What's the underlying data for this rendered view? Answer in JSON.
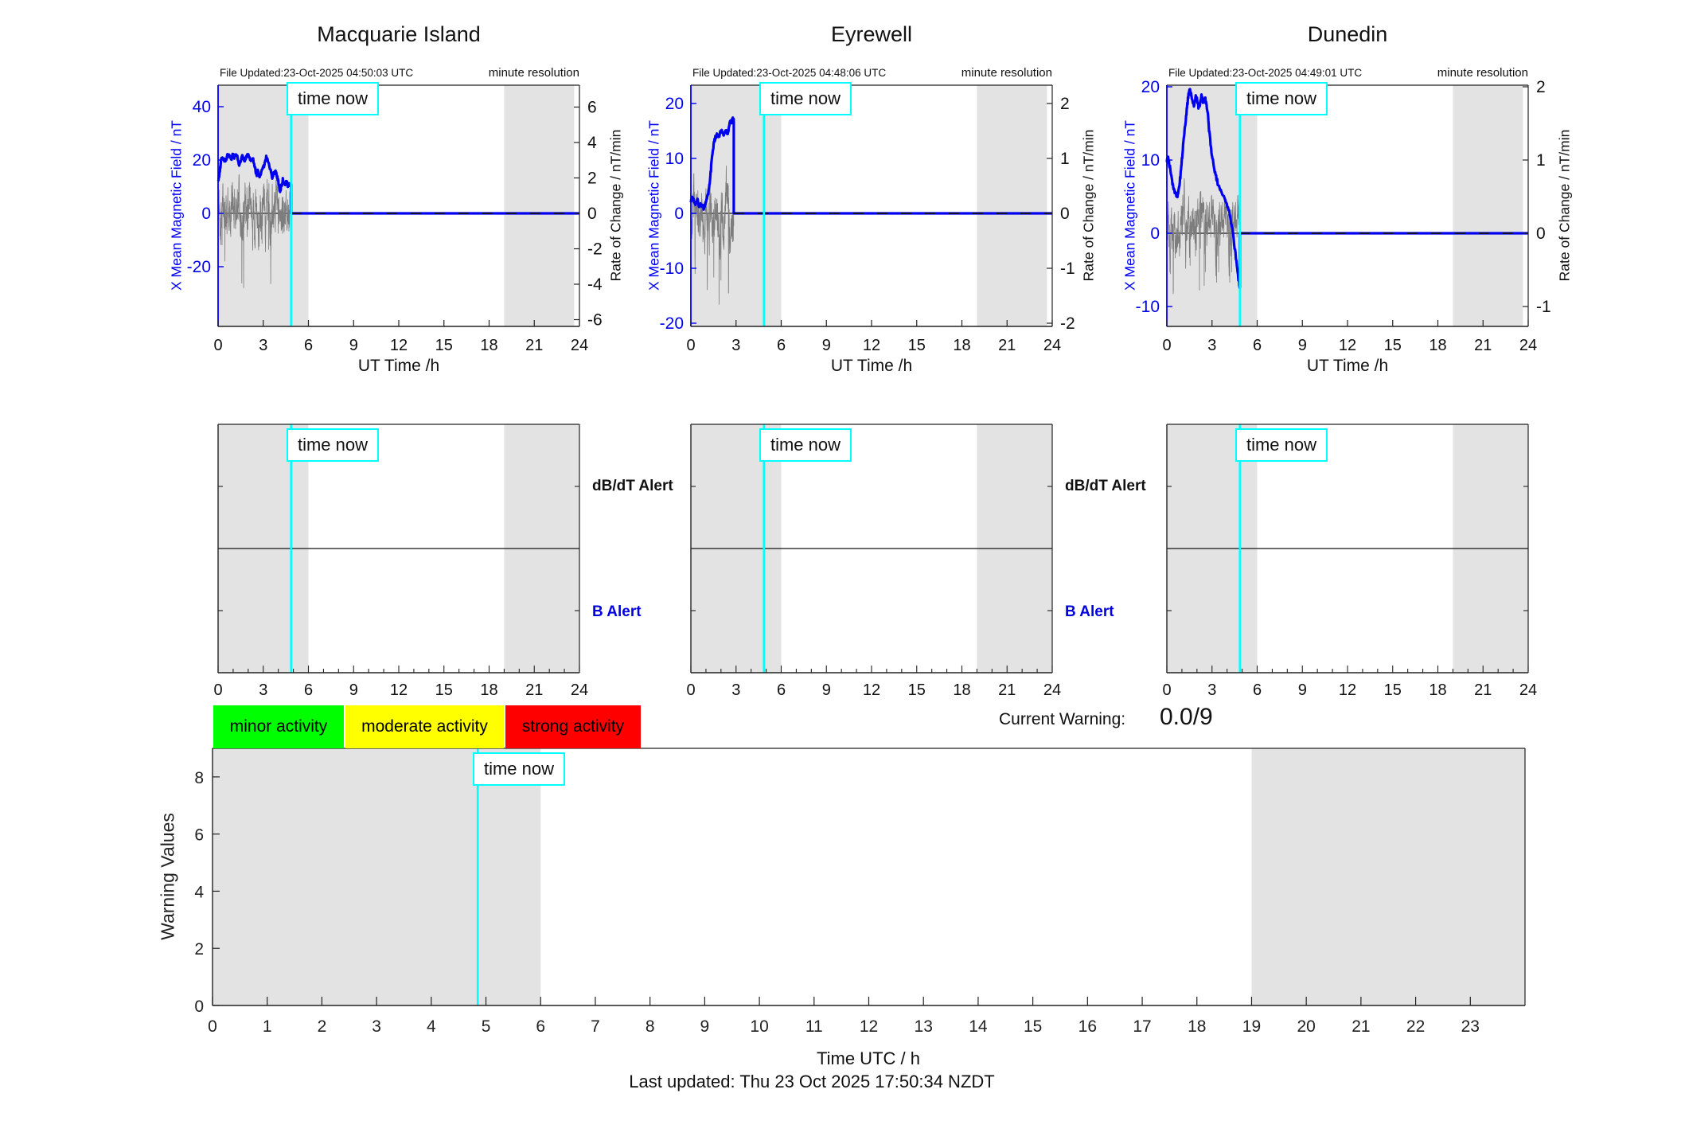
{
  "time_now_label": "time now",
  "time_now_hour": 4.85,
  "shaded_hours": {
    "early": [
      0,
      6
    ],
    "late": [
      19,
      24
    ],
    "late_top_plots": [
      19,
      23.65
    ]
  },
  "x_ticks_stations": [
    0,
    3,
    6,
    9,
    12,
    15,
    18,
    21,
    24
  ],
  "stations": [
    {
      "name": "Macquarie Island",
      "file_updated": "File Updated:23-Oct-2025 04:50:03 UTC",
      "minute_resolution": "minute resolution",
      "left_axis_label": "X Mean Magnetic Field / nT",
      "right_axis_label": "Rate of Change / nT/min",
      "x_axis_label": "UT Time /h",
      "left_ticks": [
        40,
        20,
        0,
        -20
      ],
      "right_ticks": [
        6,
        4,
        2,
        0,
        -2,
        -4,
        -6
      ]
    },
    {
      "name": "Eyrewell",
      "file_updated": "File Updated:23-Oct-2025 04:48:06 UTC",
      "minute_resolution": "minute resolution",
      "left_axis_label": "X Mean Magnetic Field / nT",
      "right_axis_label": "Rate of Change / nT/min",
      "x_axis_label": "UT Time /h",
      "left_ticks": [
        20,
        10,
        0,
        -10,
        -20
      ],
      "right_ticks": [
        2,
        1,
        0,
        -1,
        -2
      ]
    },
    {
      "name": "Dunedin",
      "file_updated": "File Updated:23-Oct-2025 04:49:01 UTC",
      "minute_resolution": "minute resolution",
      "left_axis_label": "X Mean Magnetic Field / nT",
      "right_axis_label": "Rate of Change / nT/min",
      "x_axis_label": "UT Time /h",
      "left_ticks": [
        20,
        10,
        0,
        -10
      ],
      "right_ticks": [
        2,
        1,
        0,
        -1
      ]
    }
  ],
  "alerts": {
    "dbdt_label": "dB/dT Alert",
    "b_label": "B Alert"
  },
  "legend": {
    "items": [
      {
        "label": "minor activity",
        "color": "#00ff00"
      },
      {
        "label": "moderate activity",
        "color": "#ffff00"
      },
      {
        "label": "strong activity",
        "color": "#ff0000"
      }
    ]
  },
  "current_warning": {
    "label": "Current Warning:",
    "value": "0.0/9"
  },
  "bottom": {
    "ylabel": "Warning Values",
    "xlabel": "Time UTC / h",
    "yticks": [
      0,
      2,
      4,
      6,
      8
    ],
    "ylim": [
      0,
      9
    ],
    "xticks": [
      0,
      1,
      2,
      3,
      4,
      5,
      6,
      7,
      8,
      9,
      10,
      11,
      12,
      13,
      14,
      15,
      16,
      17,
      18,
      19,
      20,
      21,
      22,
      23
    ]
  },
  "footer": "Last updated: Thu 23 Oct 2025 17:50:34 NZDT",
  "colors": {
    "field_line": "#0000f0",
    "rate_noise": "#7d7d7d",
    "time_now": "#00ffff",
    "shaded_band": "#e3e3e3",
    "alert_b_text": "#0000e0"
  },
  "chart_data": [
    {
      "type": "line",
      "title": "Macquarie Island",
      "xlabel": "UT Time /h",
      "x_range_hours": [
        0,
        24
      ],
      "left_axis": {
        "label": "X Mean Magnetic Field / nT",
        "ticks": [
          40,
          20,
          0,
          -20
        ],
        "approx_lim": [
          -42,
          48
        ]
      },
      "right_axis": {
        "label": "Rate of Change / nT/min",
        "ticks": [
          6,
          4,
          2,
          0,
          -2,
          -4,
          -6
        ],
        "approx_lim": [
          -6.4,
          7.2
        ]
      },
      "time_now": 4.85,
      "shaded": [
        [
          0,
          6
        ],
        [
          19,
          23.65
        ]
      ],
      "series": [
        {
          "name": "X mean magnetic field (nT)",
          "kind": "line",
          "points": [
            [
              0,
              12
            ],
            [
              0.12,
              16
            ],
            [
              0.2,
              20
            ],
            [
              0.35,
              21
            ],
            [
              0.5,
              19
            ],
            [
              0.62,
              22
            ],
            [
              0.75,
              21.5
            ],
            [
              0.9,
              20
            ],
            [
              1.0,
              22.5
            ],
            [
              1.1,
              21
            ],
            [
              1.25,
              22
            ],
            [
              1.4,
              18.5
            ],
            [
              1.5,
              20
            ],
            [
              1.6,
              21.5
            ],
            [
              1.75,
              19.5
            ],
            [
              1.85,
              21
            ],
            [
              2.0,
              22.5
            ],
            [
              2.1,
              21
            ],
            [
              2.2,
              19.5
            ],
            [
              2.3,
              21
            ],
            [
              2.45,
              17
            ],
            [
              2.55,
              14.5
            ],
            [
              2.65,
              16
            ],
            [
              2.75,
              13.5
            ],
            [
              2.85,
              15
            ],
            [
              3.0,
              17
            ],
            [
              3.1,
              19.5
            ],
            [
              3.2,
              21
            ],
            [
              3.35,
              19
            ],
            [
              3.5,
              16
            ],
            [
              3.6,
              13.5
            ],
            [
              3.7,
              15
            ],
            [
              3.8,
              16
            ],
            [
              3.9,
              14
            ],
            [
              4.0,
              12
            ],
            [
              4.1,
              8.5
            ],
            [
              4.2,
              10
            ],
            [
              4.3,
              12.5
            ],
            [
              4.45,
              11
            ],
            [
              4.55,
              12
            ],
            [
              4.65,
              10
            ],
            [
              4.75,
              11.5
            ],
            [
              4.85,
              11
            ]
          ],
          "then_flat_zero_until": 24
        },
        {
          "name": "rate of change (nT/min)",
          "kind": "noise",
          "t_end": 4.85,
          "approx_range": [
            -4.5,
            3
          ],
          "amp": 2.1,
          "seed": 11,
          "spikes": []
        }
      ]
    },
    {
      "type": "line",
      "title": "Eyrewell",
      "xlabel": "UT Time /h",
      "x_range_hours": [
        0,
        24
      ],
      "left_axis": {
        "label": "X Mean Magnetic Field / nT",
        "ticks": [
          20,
          10,
          0,
          -10,
          -20
        ],
        "approx_lim": [
          -20.5,
          23.3
        ]
      },
      "right_axis": {
        "label": "Rate of Change / nT/min",
        "ticks": [
          2,
          1,
          0,
          -1,
          -2
        ],
        "approx_lim": [
          -2.05,
          2.33
        ]
      },
      "time_now": 4.85,
      "shaded": [
        [
          0,
          6
        ],
        [
          19,
          23.65
        ]
      ],
      "series": [
        {
          "name": "X mean magnetic field (nT)",
          "kind": "line",
          "points": [
            [
              0,
              2
            ],
            [
              0.1,
              3
            ],
            [
              0.2,
              2.2
            ],
            [
              0.3,
              1.6
            ],
            [
              0.45,
              2.4
            ],
            [
              0.55,
              1.2
            ],
            [
              0.7,
              1.8
            ],
            [
              0.85,
              1
            ],
            [
              0.95,
              1.6
            ],
            [
              1.05,
              2.6
            ],
            [
              1.15,
              3.4
            ],
            [
              1.25,
              5.5
            ],
            [
              1.35,
              8.5
            ],
            [
              1.45,
              11.5
            ],
            [
              1.55,
              13
            ],
            [
              1.65,
              14
            ],
            [
              1.75,
              14.3
            ],
            [
              1.85,
              13.8
            ],
            [
              1.95,
              14.6
            ],
            [
              2.05,
              14.9
            ],
            [
              2.15,
              14.2
            ],
            [
              2.25,
              14.6
            ],
            [
              2.35,
              15
            ],
            [
              2.45,
              14.4
            ],
            [
              2.5,
              15.2
            ],
            [
              2.58,
              16.4
            ],
            [
              2.64,
              17
            ],
            [
              2.7,
              16.6
            ],
            [
              2.76,
              17.2
            ],
            [
              2.82,
              17
            ],
            [
              2.85,
              16.8
            ]
          ],
          "then_flat_zero_until": 24
        },
        {
          "name": "rate of change (nT/min)",
          "kind": "noise",
          "t_end": 2.85,
          "approx_range": [
            -1.5,
            0.9
          ],
          "amp": 0.72,
          "seed": 23,
          "spikes": [
            {
              "t": 2.5,
              "value": -1.45
            }
          ]
        }
      ]
    },
    {
      "type": "line",
      "title": "Dunedin",
      "xlabel": "UT Time /h",
      "x_range_hours": [
        0,
        24
      ],
      "left_axis": {
        "label": "X Mean Magnetic Field / nT",
        "ticks": [
          20,
          10,
          0,
          -10
        ],
        "approx_lim": [
          -12.7,
          20.2
        ]
      },
      "right_axis": {
        "label": "Rate of Change / nT/min",
        "ticks": [
          2,
          1,
          0,
          -1
        ],
        "approx_lim": [
          -1.27,
          2.02
        ]
      },
      "time_now": 4.85,
      "shaded": [
        [
          0,
          6
        ],
        [
          19,
          23.65
        ]
      ],
      "series": [
        {
          "name": "X mean magnetic field (nT)",
          "kind": "line",
          "points": [
            [
              0,
              10
            ],
            [
              0.08,
              10.4
            ],
            [
              0.18,
              9.2
            ],
            [
              0.3,
              8
            ],
            [
              0.42,
              6.3
            ],
            [
              0.55,
              5.6
            ],
            [
              0.68,
              5.1
            ],
            [
              0.8,
              6
            ],
            [
              0.9,
              7.8
            ],
            [
              1.0,
              10
            ],
            [
              1.1,
              12.2
            ],
            [
              1.2,
              14.3
            ],
            [
              1.3,
              16.4
            ],
            [
              1.4,
              18.3
            ],
            [
              1.5,
              19.6
            ],
            [
              1.6,
              19
            ],
            [
              1.7,
              18.2
            ],
            [
              1.8,
              17.6
            ],
            [
              1.9,
              18.6
            ],
            [
              2.0,
              18.2
            ],
            [
              2.1,
              17.2
            ],
            [
              2.2,
              17.6
            ],
            [
              2.3,
              18.6
            ],
            [
              2.4,
              18.1
            ],
            [
              2.5,
              18.5
            ],
            [
              2.6,
              18
            ],
            [
              2.7,
              16.8
            ],
            [
              2.8,
              14.2
            ],
            [
              2.9,
              12.3
            ],
            [
              3.0,
              10.4
            ],
            [
              3.15,
              8.8
            ],
            [
              3.3,
              7.4
            ],
            [
              3.5,
              6.2
            ],
            [
              3.7,
              5.4
            ],
            [
              3.9,
              4.6
            ],
            [
              4.1,
              3.2
            ],
            [
              4.3,
              1.2
            ],
            [
              4.5,
              -1.8
            ],
            [
              4.65,
              -4.5
            ],
            [
              4.78,
              -6.5
            ],
            [
              4.85,
              -7.4
            ]
          ],
          "then_flat_zero_until": 24
        },
        {
          "name": "rate of change (nT/min)",
          "kind": "noise",
          "t_end": 4.85,
          "approx_range": [
            -1.1,
            0.75
          ],
          "amp": 0.52,
          "seed": 37,
          "spikes": []
        }
      ]
    },
    {
      "type": "line",
      "title": "Warning Values",
      "ylabel": "Warning Values",
      "xlabel": "Time UTC / h",
      "x_range_hours": [
        0,
        24
      ],
      "ylim": [
        0,
        9
      ],
      "yticks": [
        0,
        2,
        4,
        6,
        8
      ],
      "time_now": 4.85,
      "shaded": [
        [
          0,
          6
        ],
        [
          19,
          24
        ]
      ],
      "series": []
    }
  ]
}
